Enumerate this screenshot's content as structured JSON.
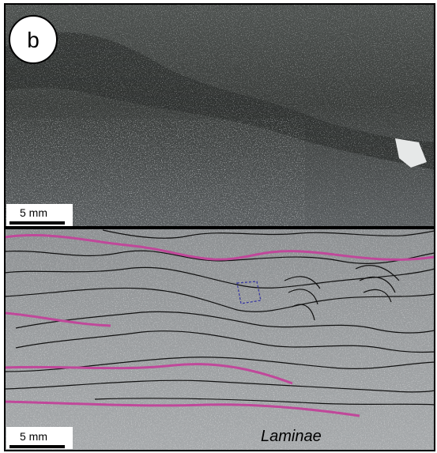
{
  "panel_label": "b",
  "top_panel": {
    "scale_bar": "5 mm"
  },
  "bottom_panel": {
    "scale_bar": "5 mm",
    "annotation": "Laminae"
  }
}
